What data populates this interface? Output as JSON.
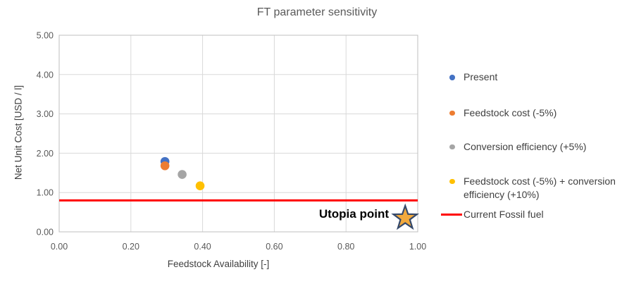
{
  "chart_data": {
    "type": "scatter",
    "title": "FT parameter sensitivity",
    "xlabel": "Feedstock Availability [-]",
    "ylabel": "Net Unit Cost [USD / l]",
    "grid": true,
    "legend_position": "right",
    "x_axis": {
      "min": 0,
      "max": 1,
      "tick_values": [
        0,
        0.2,
        0.4,
        0.6,
        0.8,
        1.0
      ],
      "tick_labels": [
        "0.00",
        "0.20",
        "0.40",
        "0.60",
        "0.80",
        "1.00"
      ]
    },
    "y_axis": {
      "min": 0,
      "max": 5,
      "tick_values": [
        0,
        1,
        2,
        3,
        4,
        5
      ],
      "tick_labels": [
        "0.00",
        "1.00",
        "2.00",
        "3.00",
        "4.00",
        "5.00"
      ]
    },
    "series": [
      {
        "name": "Present",
        "marker": "dot",
        "color": "#4472C4",
        "points": [
          {
            "x": 0.295,
            "y": 1.79
          }
        ]
      },
      {
        "name": "Feedstock cost (-5%)",
        "marker": "dot",
        "color": "#ED7D31",
        "points": [
          {
            "x": 0.295,
            "y": 1.68
          }
        ]
      },
      {
        "name": "Conversion efficiency (+5%)",
        "marker": "dot",
        "color": "#A5A5A5",
        "points": [
          {
            "x": 0.343,
            "y": 1.46
          }
        ]
      },
      {
        "name": "Feedstock cost (-5%) + conversion efficiency (+10%)",
        "marker": "dot",
        "color": "#FFC000",
        "points": [
          {
            "x": 0.393,
            "y": 1.17
          }
        ]
      }
    ],
    "reference_line": {
      "name": "Current Fossil fuel",
      "value": 0.8,
      "color": "#FF0000"
    },
    "annotation": {
      "text": "Utopia point",
      "x": 0.965,
      "y": 0.35,
      "marker": "star",
      "fill": "#F2A93C",
      "stroke": "#35496B"
    },
    "colors": {
      "gridline": "#D9D9D9",
      "plot_border": "#BFBFBF",
      "title_text": "#595959",
      "tick_text": "#595959",
      "legend_text": "#404040"
    }
  }
}
